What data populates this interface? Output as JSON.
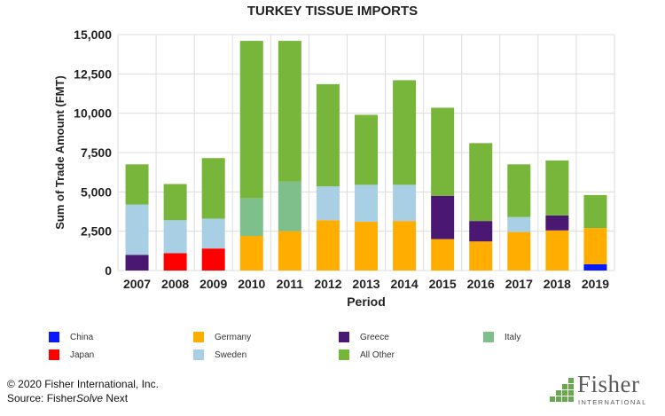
{
  "chart_data": {
    "type": "bar",
    "stacked": true,
    "title": "TURKEY TISSUE IMPORTS",
    "xlabel": "Period",
    "ylabel": "Sum of Trade Amount (FMT)",
    "ylim": [
      0,
      15000
    ],
    "yticks": [
      "0",
      "2,500",
      "5,000",
      "7,500",
      "10,000",
      "12,500",
      "15,000"
    ],
    "ytick_values": [
      0,
      2500,
      5000,
      7500,
      10000,
      12500,
      15000
    ],
    "grid": true,
    "legend_position": "bottom",
    "categories": [
      "2007",
      "2008",
      "2009",
      "2010",
      "2011",
      "2012",
      "2013",
      "2014",
      "2015",
      "2016",
      "2017",
      "2018",
      "2019"
    ],
    "series": [
      {
        "name": "China",
        "color": "#0a1aff",
        "values": [
          0,
          0,
          0,
          0,
          0,
          0,
          0,
          0,
          0,
          0,
          0,
          0,
          400
        ]
      },
      {
        "name": "Japan",
        "color": "#ff0000",
        "values": [
          0,
          1100,
          1400,
          0,
          0,
          0,
          0,
          0,
          0,
          0,
          0,
          0,
          0
        ]
      },
      {
        "name": "Germany",
        "color": "#ffae00",
        "values": [
          0,
          0,
          0,
          2200,
          2500,
          3200,
          3100,
          3150,
          2000,
          1850,
          2450,
          2550,
          2300
        ]
      },
      {
        "name": "Greece",
        "color": "#4a1772",
        "values": [
          1000,
          0,
          0,
          0,
          0,
          0,
          0,
          0,
          2750,
          1300,
          0,
          950,
          0
        ]
      },
      {
        "name": "Sweden",
        "color": "#a8cfe3",
        "values": [
          3200,
          2100,
          1900,
          0,
          0,
          2150,
          2350,
          2300,
          0,
          0,
          950,
          0,
          0
        ]
      },
      {
        "name": "Italy",
        "color": "#7fbf8c",
        "values": [
          0,
          0,
          0,
          2400,
          3150,
          0,
          0,
          0,
          0,
          0,
          0,
          0,
          0
        ]
      },
      {
        "name": "All Other",
        "color": "#77b63b",
        "values": [
          2550,
          2300,
          3850,
          10000,
          8950,
          6500,
          4450,
          6650,
          5600,
          4950,
          3350,
          3500,
          2100
        ]
      }
    ]
  },
  "legend_order": [
    "China",
    "Germany",
    "Greece",
    "Italy",
    "Japan",
    "Sweden",
    "All Other"
  ],
  "footer": {
    "copyright": "© 2020 Fisher International, Inc.",
    "source_prefix": "Source: Fisher",
    "source_italic": "Solve",
    "source_suffix": " Next"
  },
  "logo": {
    "name": "Fisher",
    "subtitle": "INTERNATIONAL",
    "color": "#6aa84f"
  }
}
